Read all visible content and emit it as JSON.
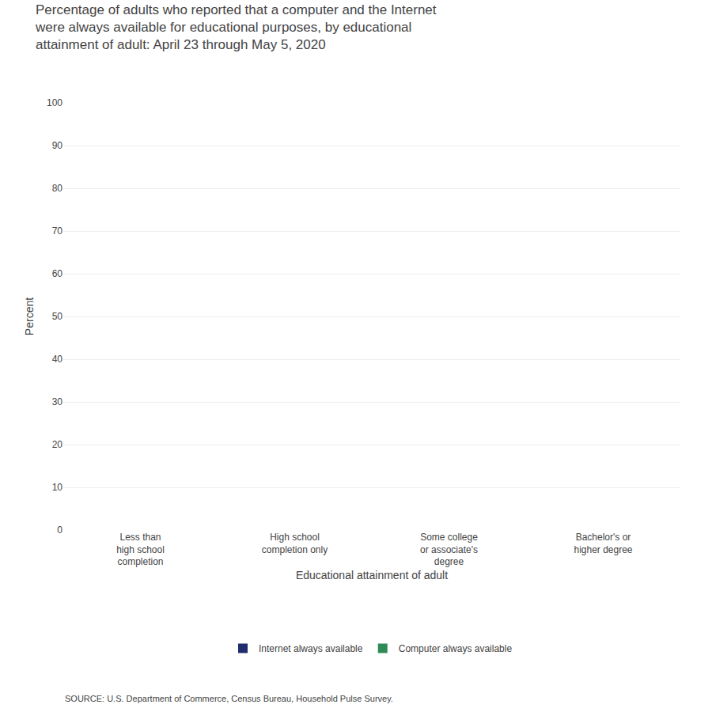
{
  "chart_data": {
    "type": "bar",
    "title": "Percentage of adults who reported that a computer and the Internet\nwere always available for educational purposes, by educational\nattainment of adult: April 23 through May 5, 2020",
    "ylabel": "Percent",
    "xlabel": "Educational attainment of adult",
    "categories": [
      "Less than\nhigh school\ncompletion",
      "High school\ncompletion only",
      "Some college\nor associate's\ndegree",
      "Bachelor's or\nhigher degree"
    ],
    "series": [
      {
        "name": "Internet always available",
        "color": "#1f2d6e",
        "values": [
          0,
          0,
          0,
          0
        ]
      },
      {
        "name": "Computer always available",
        "color": "#2e8b57",
        "values": [
          0,
          0,
          0,
          0
        ]
      }
    ],
    "ylim": [
      0,
      100
    ],
    "yticks": [
      0,
      10,
      20,
      30,
      40,
      50,
      60,
      70,
      80,
      90,
      100
    ],
    "grid": true,
    "legend": "bottom",
    "annotations": [
      "SOURCE: U.S. Department of Commerce, Census Bureau, Household Pulse Survey."
    ]
  }
}
